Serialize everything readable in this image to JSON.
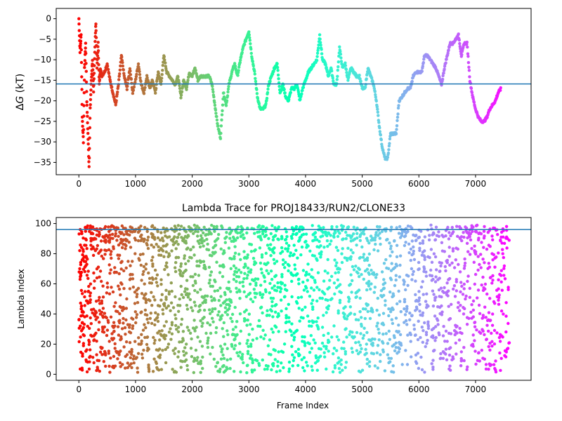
{
  "chart_data": [
    {
      "type": "scatter",
      "title": "",
      "xlabel": "",
      "ylabel": "ΔG (kT)",
      "ylabel_parts": {
        "delta": "Δ",
        "g": "G",
        "rest": " (kT)"
      },
      "xlim": [
        -400,
        7980
      ],
      "ylim": [
        -38,
        2.5
      ],
      "xticks": [
        0,
        1000,
        2000,
        3000,
        4000,
        5000,
        6000,
        7000
      ],
      "yticks": [
        0,
        -5,
        -10,
        -15,
        -20,
        -25,
        -30,
        -35
      ],
      "hline": -15.9,
      "hline_color": "#1f77b4",
      "colormap": "rainbow (colored by frame index)",
      "points_x": [
        0,
        20,
        40,
        60,
        80,
        100,
        120,
        140,
        160,
        180,
        200,
        220,
        240,
        260,
        280,
        300,
        320,
        340,
        360,
        380,
        400,
        450,
        500,
        550,
        600,
        650,
        700,
        750,
        800,
        850,
        900,
        950,
        1000,
        1050,
        1100,
        1150,
        1200,
        1250,
        1300,
        1350,
        1400,
        1450,
        1500,
        1550,
        1600,
        1650,
        1700,
        1750,
        1800,
        1850,
        1900,
        1950,
        2000,
        2050,
        2100,
        2150,
        2200,
        2250,
        2300,
        2350,
        2400,
        2450,
        2500,
        2550,
        2600,
        2650,
        2700,
        2750,
        2800,
        2850,
        2900,
        2950,
        3000,
        3050,
        3100,
        3150,
        3200,
        3250,
        3300,
        3350,
        3400,
        3450,
        3500,
        3550,
        3600,
        3650,
        3700,
        3750,
        3800,
        3850,
        3900,
        3950,
        4000,
        4050,
        4100,
        4150,
        4200,
        4250,
        4300,
        4350,
        4400,
        4450,
        4500,
        4550,
        4600,
        4650,
        4700,
        4750,
        4800,
        4850,
        4900,
        4950,
        5000,
        5050,
        5100,
        5150,
        5200,
        5250,
        5300,
        5350,
        5400,
        5450,
        5500,
        5550,
        5600,
        5650,
        5700,
        5750,
        5800,
        5850,
        5900,
        5950,
        6000,
        6050,
        6100,
        6150,
        6200,
        6250,
        6300,
        6350,
        6400,
        6450,
        6500,
        6550,
        6600,
        6650,
        6700,
        6750,
        6800,
        6850,
        6900,
        6950,
        7000,
        7050,
        7100,
        7150,
        7200,
        7250,
        7300,
        7350,
        7400,
        7450,
        7500,
        7550,
        7600
      ],
      "points_y": [
        0,
        -8,
        -4,
        -24,
        -30,
        -12,
        -6,
        -20,
        -28,
        -36,
        -22,
        -15,
        -10,
        -18,
        -8,
        -1,
        -12,
        -6,
        -16,
        -12,
        -14,
        -13,
        -11,
        -15,
        -18,
        -21,
        -16,
        -9,
        -14,
        -17,
        -12,
        -18,
        -15,
        -11,
        -16,
        -18,
        -14,
        -17,
        -15,
        -18,
        -13,
        -16,
        -9,
        -13,
        -14,
        -15,
        -16,
        -14,
        -19,
        -15,
        -17,
        -13,
        -14,
        -12,
        -15,
        -14,
        -14,
        -14,
        -14,
        -16,
        -21,
        -26,
        -29,
        -18,
        -21,
        -16,
        -13,
        -11,
        -14,
        -10,
        -7,
        -5,
        -3,
        -9,
        -13,
        -19,
        -22,
        -22,
        -21,
        -16,
        -14,
        -12,
        -11,
        -18,
        -16,
        -19,
        -20,
        -17,
        -17,
        -16,
        -20,
        -17,
        -15,
        -13,
        -12,
        -11,
        -10,
        -4,
        -10,
        -11,
        -14,
        -12,
        -16,
        -16,
        -7,
        -12,
        -11,
        -15,
        -12,
        -13,
        -14,
        -14,
        -17,
        -17,
        -12,
        -14,
        -16,
        -20,
        -26,
        -31,
        -34,
        -34,
        -28,
        -28,
        -28,
        -20,
        -19,
        -18,
        -17,
        -17,
        -14,
        -13,
        -13,
        -13,
        -9,
        -9,
        -10,
        -11,
        -12,
        -14,
        -16,
        -12,
        -9,
        -6,
        -6,
        -5,
        -4,
        -9,
        -6,
        -6,
        -15,
        -19,
        -22,
        -24,
        -25,
        -25,
        -24,
        -22,
        -21,
        -20,
        -18,
        -17
      ]
    },
    {
      "type": "scatter",
      "title": "Lambda Trace for PROJ18433/RUN2/CLONE33",
      "xlabel": "Frame Index",
      "ylabel": "Lambda Index",
      "xlim": [
        -400,
        7980
      ],
      "ylim": [
        -4,
        104
      ],
      "xticks": [
        0,
        1000,
        2000,
        3000,
        4000,
        5000,
        6000,
        7000
      ],
      "yticks": [
        0,
        20,
        40,
        60,
        80,
        100
      ],
      "hline": 96,
      "hline_color": "#1f77b4",
      "colormap": "rainbow (colored by frame index)"
    }
  ]
}
